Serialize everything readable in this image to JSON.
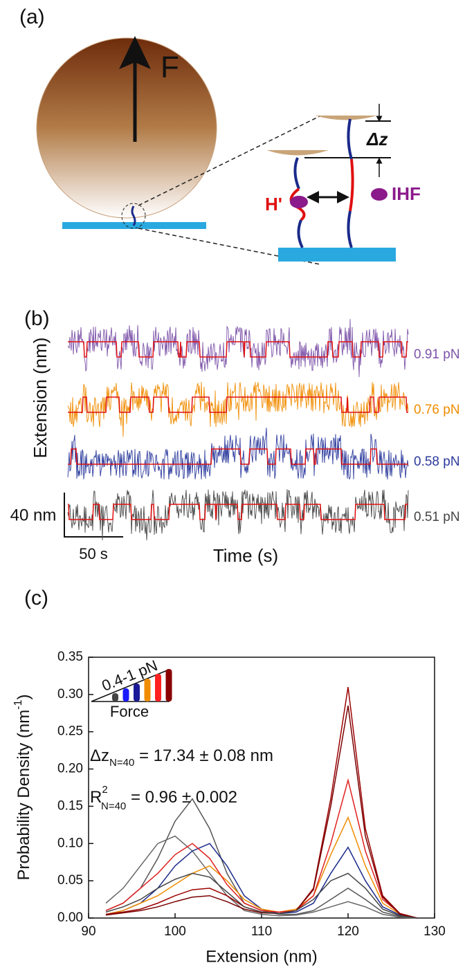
{
  "panel_a": {
    "label": "(a)",
    "force": "F",
    "dz": "Δz",
    "hprime": "H'",
    "ihf": "IHF"
  },
  "panel_b": {
    "label": "(b)",
    "y_label": "Extension (nm)",
    "x_label": "Time (s)",
    "scale_y": "40 nm",
    "scale_x": "50 s",
    "traces": [
      {
        "name": "0.91 pN",
        "color": "#7c52a8"
      },
      {
        "name": "0.76 pN",
        "color": "#f08c00"
      },
      {
        "name": "0.58 pN",
        "color": "#2b3a9c"
      },
      {
        "name": "0.51 pN",
        "color": "#444444"
      }
    ],
    "fit_color": "#e01010"
  },
  "chart_data": {
    "type": "line",
    "panel_label": "(c)",
    "x_label": "Extension (nm)",
    "y_label": "Probability Density (nm",
    "y_label_sup": "-1",
    "y_label_end": ")",
    "annotations": [
      {
        "main": "Δz",
        "sub": "N=40",
        "rest": " = 17.34 ± 0.08 nm"
      },
      {
        "main": "R",
        "sup": "2",
        "sub": "N=40",
        "rest": " = 0.96 ± 0.002"
      }
    ],
    "inset": {
      "label": "0.4-1 pN",
      "axis": "Force",
      "colors": [
        "#444444",
        "#1a1aff",
        "#1a1a99",
        "#f08c00",
        "#ff2020",
        "#8b0000"
      ]
    },
    "xlim": [
      90,
      130
    ],
    "xticks": [
      90,
      100,
      110,
      120,
      130
    ],
    "ylim": [
      0,
      0.35
    ],
    "yticks": [
      {
        "value": 0,
        "label": "0.00"
      },
      0.05,
      {
        "value": 0.1,
        "label": "0.10"
      },
      0.15,
      {
        "value": 0.2,
        "label": "0.20"
      },
      0.25,
      {
        "value": 0.3,
        "label": "0.30"
      },
      0.35
    ],
    "x": [
      92,
      94,
      96,
      98,
      100,
      102,
      104,
      106,
      108,
      110,
      112,
      114,
      116,
      118,
      120,
      122,
      124,
      126,
      128
    ],
    "series": [
      {
        "color": "#555555",
        "values": [
          0.01,
          0.02,
          0.04,
          0.08,
          0.13,
          0.16,
          0.12,
          0.06,
          0.02,
          0.01,
          0.005,
          0.005,
          0.01,
          0.025,
          0.04,
          0.025,
          0.008,
          0.002,
          0
        ]
      },
      {
        "color": "#666666",
        "values": [
          0.02,
          0.04,
          0.07,
          0.1,
          0.11,
          0.09,
          0.06,
          0.03,
          0.01,
          0.005,
          0.003,
          0.004,
          0.008,
          0.015,
          0.022,
          0.015,
          0.005,
          0.001,
          0
        ]
      },
      {
        "color": "#1a2a8a",
        "values": [
          0.005,
          0.01,
          0.02,
          0.04,
          0.07,
          0.09,
          0.1,
          0.07,
          0.03,
          0.012,
          0.006,
          0.008,
          0.02,
          0.06,
          0.095,
          0.05,
          0.015,
          0.004,
          0
        ]
      },
      {
        "color": "#f08c00",
        "values": [
          0.005,
          0.01,
          0.02,
          0.03,
          0.045,
          0.06,
          0.07,
          0.05,
          0.025,
          0.012,
          0.008,
          0.012,
          0.03,
          0.085,
          0.135,
          0.07,
          0.02,
          0.005,
          0
        ]
      },
      {
        "color": "#e02020",
        "values": [
          0.01,
          0.02,
          0.04,
          0.06,
          0.085,
          0.1,
          0.08,
          0.045,
          0.02,
          0.01,
          0.008,
          0.01,
          0.03,
          0.1,
          0.185,
          0.09,
          0.025,
          0.006,
          0
        ]
      },
      {
        "color": "#9b0000",
        "values": [
          0.005,
          0.008,
          0.012,
          0.02,
          0.03,
          0.038,
          0.04,
          0.03,
          0.015,
          0.008,
          0.006,
          0.01,
          0.04,
          0.16,
          0.31,
          0.12,
          0.03,
          0.006,
          0
        ]
      },
      {
        "color": "#7a0000",
        "values": [
          0.004,
          0.007,
          0.01,
          0.015,
          0.022,
          0.028,
          0.03,
          0.022,
          0.012,
          0.007,
          0.006,
          0.01,
          0.038,
          0.15,
          0.285,
          0.11,
          0.028,
          0.005,
          0
        ]
      },
      {
        "color": "#444444",
        "values": [
          0.008,
          0.015,
          0.025,
          0.04,
          0.052,
          0.06,
          0.055,
          0.035,
          0.015,
          0.008,
          0.006,
          0.01,
          0.025,
          0.05,
          0.06,
          0.04,
          0.012,
          0.003,
          0
        ]
      }
    ]
  }
}
